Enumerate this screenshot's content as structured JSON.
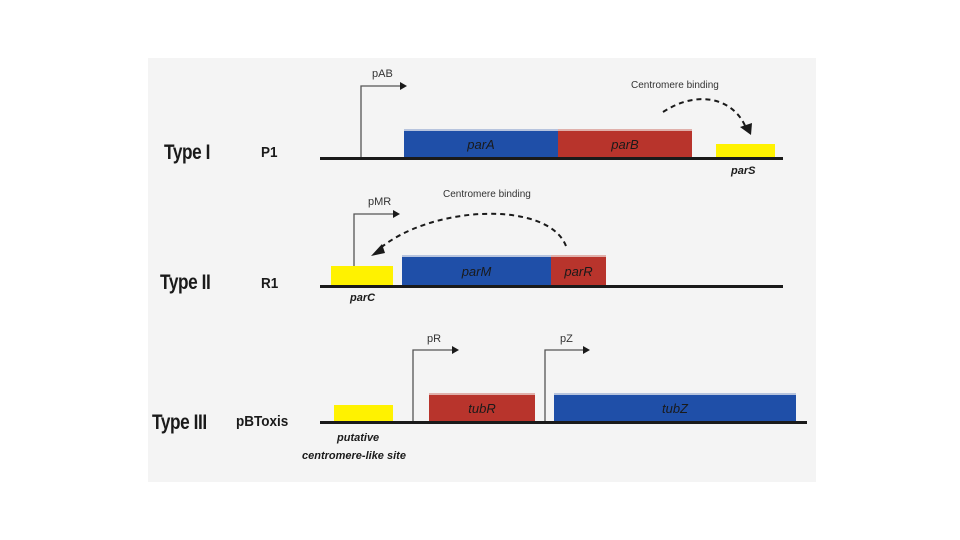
{
  "rows": [
    {
      "type_label": "Type I",
      "plasmid": "P1",
      "promoter": "pAB",
      "genes": [
        "parA",
        "parB"
      ],
      "site": "parS",
      "binding_label": "Centromere binding"
    },
    {
      "type_label": "Type II",
      "plasmid": "R1",
      "promoter": "pMR",
      "genes": [
        "parM",
        "parR"
      ],
      "site": "parC",
      "binding_label": "Centromere binding"
    },
    {
      "type_label": "Type III",
      "plasmid": "pBToxis",
      "promoters": [
        "pR",
        "pZ"
      ],
      "genes": [
        "tubR",
        "tubZ"
      ],
      "site_lines": [
        "putative",
        "centromere-like site"
      ]
    }
  ],
  "colors": {
    "blue": "#1f4fa8",
    "red": "#b8342c",
    "yellow": "#fff200",
    "background": "#f4f4f4"
  }
}
